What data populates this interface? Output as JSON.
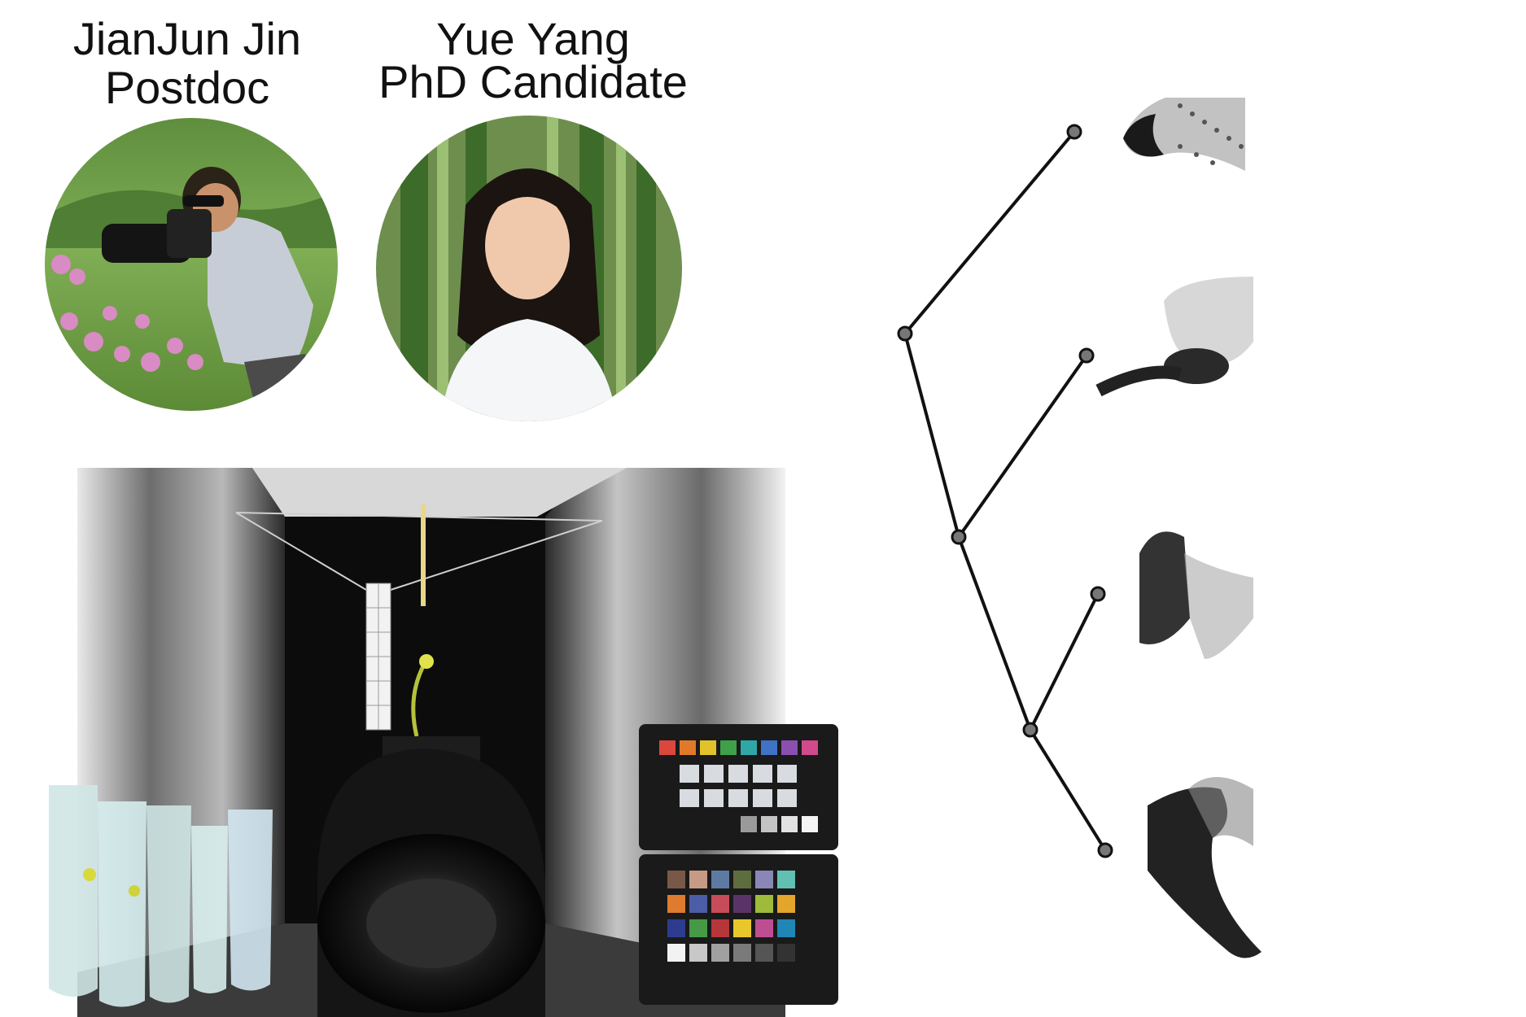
{
  "people": [
    {
      "name": "JianJun Jin",
      "role": "Postdoc"
    },
    {
      "name": "Yue Yang",
      "role": "PhD Candidate"
    }
  ],
  "figure": {
    "tree": {
      "tips": [
        "shape-tip-1",
        "shape-tip-2",
        "shape-tip-3",
        "shape-tip-4"
      ]
    }
  },
  "colors": {
    "text": "#111111",
    "tree_line": "#111111",
    "node_fill": "#777777"
  }
}
